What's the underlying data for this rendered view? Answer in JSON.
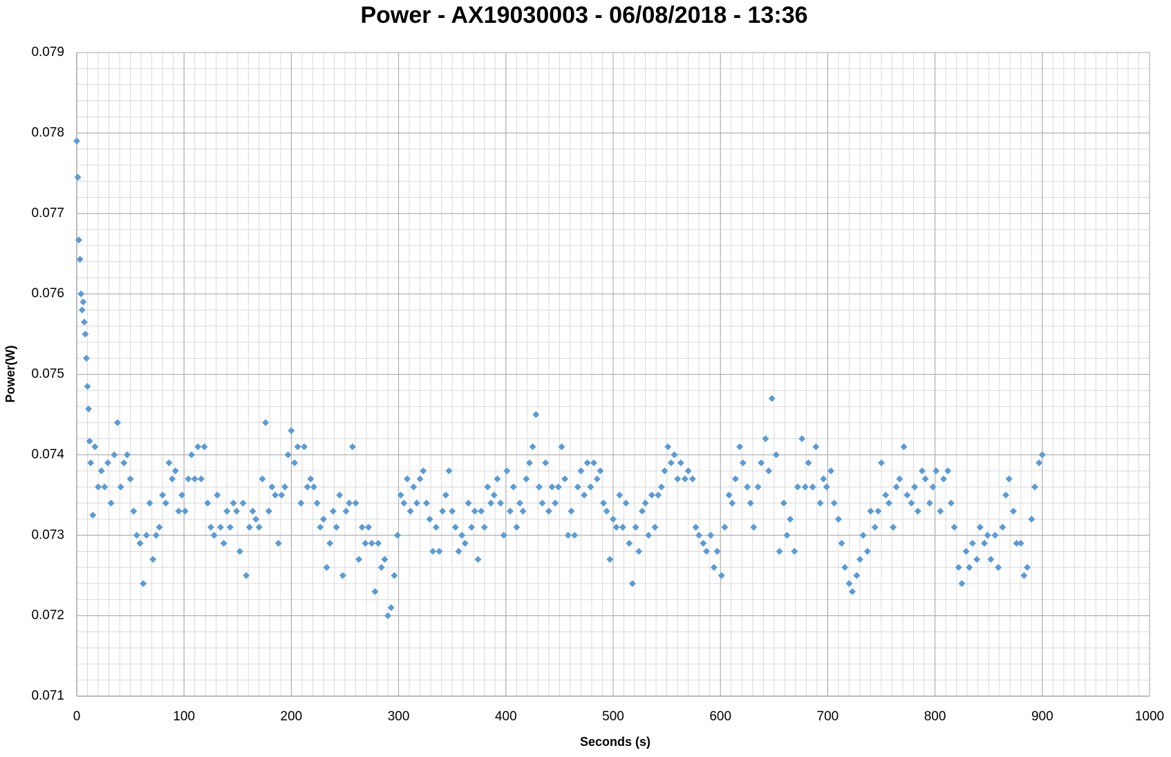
{
  "chart_data": {
    "type": "line",
    "title": "Power - AX19030003 - 06/08/2018 - 13:36",
    "x_label": "Seconds (s)",
    "y_label": "Power(W)",
    "color": "#5b9bd5",
    "grid": true,
    "minor_grid": true,
    "markers": "diamond",
    "xlim": [
      0,
      1000
    ],
    "xticks": [
      0,
      100,
      200,
      300,
      400,
      500,
      600,
      700,
      800,
      900,
      1000
    ],
    "ylim": [
      0.071,
      0.079
    ],
    "yticks": [
      0.071,
      0.072,
      0.073,
      0.074,
      0.075,
      0.076,
      0.077,
      0.078,
      0.079
    ],
    "x": [
      0,
      1,
      2,
      3,
      4,
      5,
      6,
      7,
      8,
      9,
      10,
      11,
      12,
      13,
      15,
      17,
      20,
      23,
      26,
      29,
      32,
      35,
      38,
      41,
      44,
      47,
      50,
      53,
      56,
      59,
      62,
      65,
      68,
      71,
      74,
      77,
      80,
      83,
      86,
      89,
      92,
      95,
      98,
      101,
      104,
      107,
      110,
      113,
      116,
      119,
      122,
      125,
      128,
      131,
      134,
      137,
      140,
      143,
      146,
      149,
      152,
      155,
      158,
      161,
      164,
      167,
      170,
      173,
      176,
      179,
      182,
      185,
      188,
      191,
      194,
      197,
      200,
      203,
      206,
      209,
      212,
      215,
      218,
      221,
      224,
      227,
      230,
      233,
      236,
      239,
      242,
      245,
      248,
      251,
      254,
      257,
      260,
      263,
      266,
      269,
      272,
      275,
      278,
      281,
      284,
      287,
      290,
      293,
      296,
      299,
      302,
      305,
      308,
      311,
      314,
      317,
      320,
      323,
      326,
      329,
      332,
      335,
      338,
      341,
      344,
      347,
      350,
      353,
      356,
      359,
      362,
      365,
      368,
      371,
      374,
      377,
      380,
      383,
      386,
      389,
      392,
      395,
      398,
      401,
      404,
      407,
      410,
      413,
      416,
      419,
      422,
      425,
      428,
      431,
      434,
      437,
      440,
      443,
      446,
      449,
      452,
      455,
      458,
      461,
      464,
      467,
      470,
      473,
      476,
      479,
      482,
      485,
      488,
      491,
      494,
      497,
      500,
      503,
      506,
      509,
      512,
      515,
      518,
      521,
      524,
      527,
      530,
      533,
      536,
      539,
      542,
      545,
      548,
      551,
      554,
      557,
      560,
      563,
      567,
      570,
      574,
      577,
      580,
      584,
      587,
      591,
      594,
      597,
      601,
      604,
      608,
      611,
      614,
      618,
      621,
      625,
      628,
      631,
      635,
      638,
      642,
      645,
      648,
      652,
      655,
      659,
      662,
      665,
      669,
      672,
      676,
      679,
      682,
      686,
      689,
      693,
      696,
      699,
      703,
      706,
      710,
      713,
      716,
      720,
      723,
      727,
      730,
      733,
      737,
      740,
      744,
      747,
      750,
      754,
      757,
      761,
      764,
      767,
      771,
      774,
      778,
      781,
      784,
      788,
      791,
      795,
      798,
      801,
      805,
      808,
      812,
      815,
      818,
      822,
      825,
      829,
      832,
      835,
      839,
      842,
      846,
      849,
      852,
      856,
      859,
      863,
      866,
      869,
      873,
      876,
      880,
      883,
      886,
      890,
      893,
      897,
      900
    ],
    "values": [
      0.0779,
      0.07745,
      0.07667,
      0.07643,
      0.076,
      0.0758,
      0.0759,
      0.07565,
      0.0755,
      0.0752,
      0.07485,
      0.07457,
      0.07417,
      0.0739,
      0.07325,
      0.0741,
      0.0736,
      0.0738,
      0.0736,
      0.0739,
      0.0734,
      0.074,
      0.0744,
      0.0736,
      0.0739,
      0.074,
      0.0737,
      0.0733,
      0.073,
      0.0729,
      0.0724,
      0.073,
      0.0734,
      0.0727,
      0.073,
      0.0731,
      0.0735,
      0.0734,
      0.0739,
      0.0737,
      0.0738,
      0.0733,
      0.0735,
      0.0733,
      0.0737,
      0.074,
      0.0737,
      0.0741,
      0.0737,
      0.0741,
      0.0734,
      0.0731,
      0.073,
      0.0735,
      0.0731,
      0.0729,
      0.0733,
      0.0731,
      0.0734,
      0.0733,
      0.0728,
      0.0734,
      0.0725,
      0.0731,
      0.0733,
      0.0732,
      0.0731,
      0.0737,
      0.0744,
      0.0733,
      0.0736,
      0.0735,
      0.0729,
      0.0735,
      0.0736,
      0.074,
      0.0743,
      0.0739,
      0.0741,
      0.0734,
      0.0741,
      0.0736,
      0.0737,
      0.0736,
      0.0734,
      0.0731,
      0.0732,
      0.0726,
      0.0729,
      0.0733,
      0.0731,
      0.0735,
      0.0725,
      0.0733,
      0.0734,
      0.0741,
      0.0734,
      0.0727,
      0.0731,
      0.0729,
      0.0731,
      0.0729,
      0.0723,
      0.0729,
      0.0726,
      0.0727,
      0.072,
      0.0721,
      0.0725,
      0.073,
      0.0735,
      0.0734,
      0.0737,
      0.0733,
      0.0736,
      0.0734,
      0.0737,
      0.0738,
      0.0734,
      0.0732,
      0.0728,
      0.0731,
      0.0728,
      0.0733,
      0.0735,
      0.0738,
      0.0733,
      0.0731,
      0.0728,
      0.073,
      0.0729,
      0.0734,
      0.0731,
      0.0733,
      0.0727,
      0.0733,
      0.0731,
      0.0736,
      0.0734,
      0.0735,
      0.0737,
      0.0734,
      0.073,
      0.0738,
      0.0733,
      0.0736,
      0.0731,
      0.0734,
      0.0733,
      0.0737,
      0.0739,
      0.0741,
      0.0745,
      0.0736,
      0.0734,
      0.0739,
      0.0733,
      0.0736,
      0.0734,
      0.0736,
      0.0741,
      0.0737,
      0.073,
      0.0733,
      0.073,
      0.0736,
      0.0738,
      0.0735,
      0.0739,
      0.0736,
      0.0739,
      0.0737,
      0.0738,
      0.0734,
      0.0733,
      0.0727,
      0.0732,
      0.0731,
      0.0735,
      0.0731,
      0.0734,
      0.0729,
      0.0724,
      0.0731,
      0.0728,
      0.0733,
      0.0734,
      0.073,
      0.0735,
      0.0731,
      0.0735,
      0.0736,
      0.0738,
      0.0741,
      0.0739,
      0.074,
      0.0737,
      0.0739,
      0.0737,
      0.0738,
      0.0737,
      0.0731,
      0.073,
      0.0729,
      0.0728,
      0.073,
      0.0726,
      0.0728,
      0.0725,
      0.0731,
      0.0735,
      0.0734,
      0.0737,
      0.0741,
      0.0739,
      0.0736,
      0.0734,
      0.0731,
      0.0736,
      0.0739,
      0.0742,
      0.0738,
      0.0747,
      0.074,
      0.0728,
      0.0734,
      0.073,
      0.0732,
      0.0728,
      0.0736,
      0.0742,
      0.0736,
      0.0739,
      0.0736,
      0.0741,
      0.0734,
      0.0737,
      0.0736,
      0.0738,
      0.0734,
      0.0732,
      0.0729,
      0.0726,
      0.0724,
      0.0723,
      0.0725,
      0.0727,
      0.073,
      0.0728,
      0.0733,
      0.0731,
      0.0733,
      0.0739,
      0.0735,
      0.0734,
      0.0731,
      0.0736,
      0.0737,
      0.0741,
      0.0735,
      0.0734,
      0.0736,
      0.0733,
      0.0738,
      0.0737,
      0.0734,
      0.0736,
      0.0738,
      0.0733,
      0.0737,
      0.0738,
      0.0734,
      0.0731,
      0.0726,
      0.0724,
      0.0728,
      0.0726,
      0.0729,
      0.0727,
      0.0731,
      0.0729,
      0.073,
      0.0727,
      0.073,
      0.0726,
      0.0731,
      0.0735,
      0.0737,
      0.0733,
      0.0729,
      0.0729,
      0.0725,
      0.0726,
      0.0732,
      0.0736,
      0.0739,
      0.074
    ]
  }
}
